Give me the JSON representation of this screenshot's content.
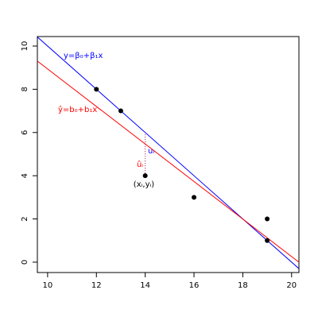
{
  "chart_data": {
    "type": "scatter",
    "x": [
      12,
      13,
      14,
      16,
      19,
      19
    ],
    "values": [
      8,
      7,
      4,
      3,
      2,
      1
    ],
    "color": "#000000",
    "xlim": [
      9.58,
      20.3
    ],
    "ylim": [
      -0.48,
      10.44
    ],
    "xticks": [
      10,
      12,
      14,
      16,
      18,
      20
    ],
    "yticks": [
      0,
      2,
      4,
      6,
      8,
      10
    ],
    "lines": [
      {
        "name": "y=β₀+β₁x",
        "color": "#0000ff",
        "intercept": 20,
        "slope": -1
      },
      {
        "name": "ŷ=b₀+b₁x",
        "color": "#ff0000",
        "intercept": 17.62,
        "slope": -0.868
      }
    ],
    "annotations": [
      {
        "text": "uᵢ",
        "color": "#0000ff"
      },
      {
        "text": "ûᵢ",
        "color": "#ff0000"
      },
      {
        "text": "(xᵢ,yᵢ)",
        "color": "#000000"
      }
    ]
  }
}
